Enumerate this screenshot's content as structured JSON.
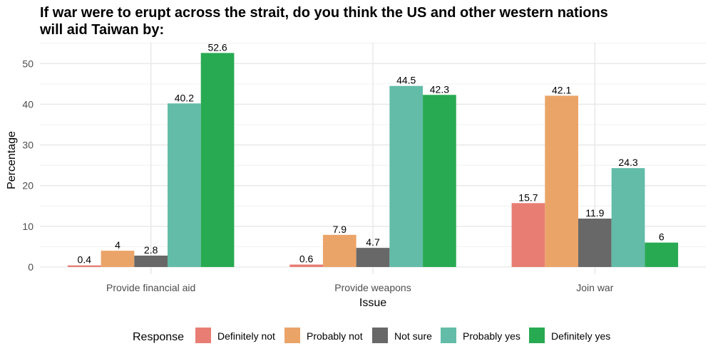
{
  "chart_data": {
    "type": "bar",
    "title_line1": "If war were to erupt across the strait, do you think the US and other western nations",
    "title_line2": "will aid Taiwan by:",
    "xlabel": "Issue",
    "ylabel": "Percentage",
    "ylim": [
      0,
      55
    ],
    "yticks": [
      0,
      10,
      20,
      30,
      40,
      50
    ],
    "grid": true,
    "legend_position": "bottom",
    "legend_title": "Response",
    "categories": [
      "Provide financial aid",
      "Provide weapons",
      "Join war"
    ],
    "series": [
      {
        "name": "Definitely not",
        "color": "#E87D74",
        "values": [
          0.4,
          0.6,
          15.7
        ]
      },
      {
        "name": "Probably not",
        "color": "#EBA468",
        "values": [
          4,
          7.9,
          42.1
        ]
      },
      {
        "name": "Not sure",
        "color": "#686868",
        "values": [
          2.8,
          4.7,
          11.9
        ]
      },
      {
        "name": "Probably yes",
        "color": "#62BCA8",
        "values": [
          40.2,
          44.5,
          24.3
        ]
      },
      {
        "name": "Definitely yes",
        "color": "#28AA52",
        "values": [
          52.6,
          42.3,
          6
        ]
      }
    ]
  }
}
